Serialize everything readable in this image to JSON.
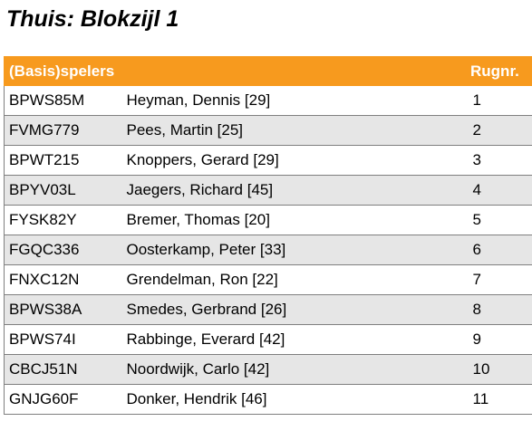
{
  "page": {
    "title": "Thuis: Blokzijl 1"
  },
  "table": {
    "headers": {
      "players": "(Basis)spelers",
      "number": "Rugnr."
    },
    "rows": [
      {
        "code": "BPWS85M",
        "name": "Heyman, Dennis  [29]",
        "number": "1"
      },
      {
        "code": "FVMG779",
        "name": "Pees, Martin  [25]",
        "number": "2"
      },
      {
        "code": "BPWT215",
        "name": "Knoppers, Gerard  [29]",
        "number": "3"
      },
      {
        "code": "BPYV03L",
        "name": "Jaegers, Richard  [45]",
        "number": "4"
      },
      {
        "code": "FYSK82Y",
        "name": "Bremer, Thomas  [20]",
        "number": "5"
      },
      {
        "code": "FGQC336",
        "name": "Oosterkamp, Peter  [33]",
        "number": "6"
      },
      {
        "code": "FNXC12N",
        "name": "Grendelman, Ron  [22]",
        "number": "7"
      },
      {
        "code": "BPWS38A",
        "name": "Smedes, Gerbrand  [26]",
        "number": "8"
      },
      {
        "code": "BPWS74I",
        "name": "Rabbinge, Everard  [42]",
        "number": "9"
      },
      {
        "code": "CBCJ51N",
        "name": "Noordwijk, Carlo  [42]",
        "number": "10"
      },
      {
        "code": "GNJG60F",
        "name": "Donker, Hendrik  [46]",
        "number": "11"
      }
    ]
  }
}
